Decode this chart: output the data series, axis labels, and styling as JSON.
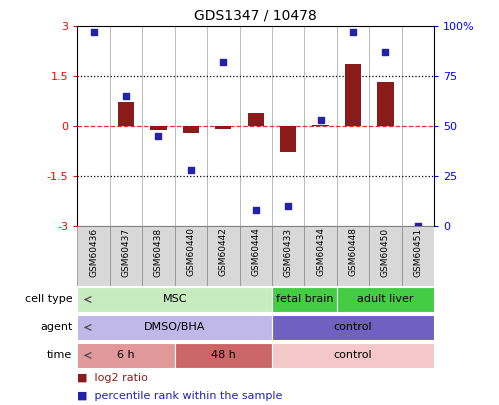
{
  "title": "GDS1347 / 10478",
  "samples": [
    "GSM60436",
    "GSM60437",
    "GSM60438",
    "GSM60440",
    "GSM60442",
    "GSM60444",
    "GSM60433",
    "GSM60434",
    "GSM60448",
    "GSM60450",
    "GSM60451"
  ],
  "log2_ratio": [
    0.0,
    0.72,
    -0.12,
    -0.22,
    -0.1,
    0.38,
    -0.78,
    0.04,
    1.88,
    1.32,
    0.0
  ],
  "percentile_rank": [
    97,
    65,
    45,
    28,
    82,
    8,
    10,
    53,
    97,
    87,
    0
  ],
  "ylim_left": [
    -3,
    3
  ],
  "ylim_right": [
    0,
    100
  ],
  "yticks_left": [
    -3,
    -1.5,
    0,
    1.5,
    3
  ],
  "yticks_right": [
    0,
    25,
    50,
    75,
    100
  ],
  "yticklabels_left": [
    "-3",
    "-1.5",
    "0",
    "1.5",
    "3"
  ],
  "yticklabels_right": [
    "0",
    "25",
    "50",
    "75",
    "100%"
  ],
  "hline_dotted": [
    -1.5,
    1.5
  ],
  "bar_color": "#8B1A1A",
  "dot_color": "#2222AA",
  "cell_type_groups": [
    {
      "label": "MSC",
      "start": 0,
      "end": 5,
      "color": "#c8ecc0"
    },
    {
      "label": "fetal brain",
      "start": 6,
      "end": 7,
      "color": "#44cc44"
    },
    {
      "label": "adult liver",
      "start": 8,
      "end": 10,
      "color": "#44cc44"
    }
  ],
  "agent_groups": [
    {
      "label": "DMSO/BHA",
      "start": 0,
      "end": 5,
      "color": "#c0b8e8"
    },
    {
      "label": "control",
      "start": 6,
      "end": 10,
      "color": "#7060c0"
    }
  ],
  "time_groups": [
    {
      "label": "6 h",
      "start": 0,
      "end": 2,
      "color": "#e09898"
    },
    {
      "label": "48 h",
      "start": 3,
      "end": 5,
      "color": "#cc6666"
    },
    {
      "label": "control",
      "start": 6,
      "end": 10,
      "color": "#f4c8c8"
    }
  ],
  "row_labels": [
    "cell type",
    "agent",
    "time"
  ],
  "legend_items": [
    {
      "color": "#8B1A1A",
      "label": "log2 ratio"
    },
    {
      "color": "#2222AA",
      "label": "percentile rank within the sample"
    }
  ],
  "xticklabel_bg": "#d8d8d8"
}
